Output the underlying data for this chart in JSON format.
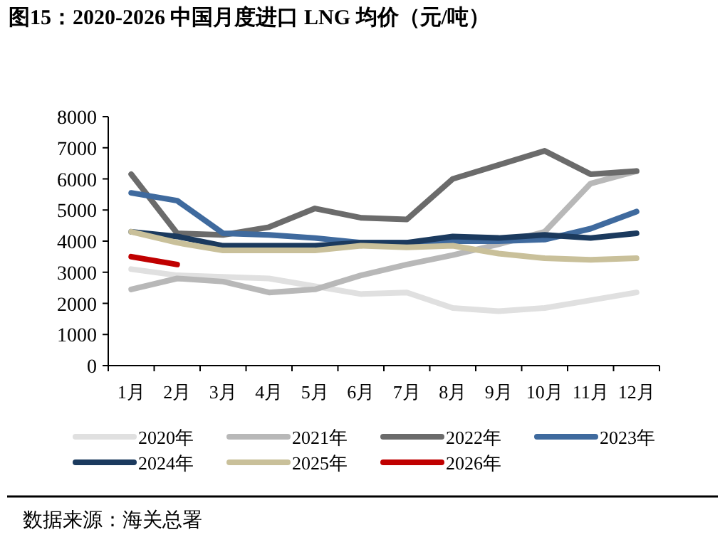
{
  "chart_data": {
    "type": "line",
    "title": "图15：2020-2026 中国月度进口 LNG 均价（元/吨）",
    "categories": [
      "1月",
      "2月",
      "3月",
      "4月",
      "5月",
      "6月",
      "7月",
      "8月",
      "9月",
      "10月",
      "11月",
      "12月"
    ],
    "ylim": [
      0,
      8000
    ],
    "yticks": [
      0,
      1000,
      2000,
      3000,
      4000,
      5000,
      6000,
      7000,
      8000
    ],
    "grid": false,
    "legend": "bottom",
    "marker": "none",
    "series": [
      {
        "name": "2020年",
        "color": "#e0e0e0",
        "values": [
          3100,
          2900,
          2850,
          2800,
          2550,
          2300,
          2350,
          1850,
          1750,
          1850,
          2100,
          2350
        ]
      },
      {
        "name": "2021年",
        "color": "#b8b8b8",
        "values": [
          2450,
          2800,
          2700,
          2350,
          2450,
          2900,
          3250,
          3550,
          3900,
          4300,
          5850,
          6250
        ]
      },
      {
        "name": "2022年",
        "color": "#6b6b6b",
        "values": [
          6150,
          4250,
          4200,
          4450,
          5050,
          4750,
          4700,
          6000,
          6450,
          6900,
          6150,
          6250
        ]
      },
      {
        "name": "2023年",
        "color": "#3f6a9e",
        "values": [
          5550,
          5300,
          4250,
          4200,
          4100,
          3950,
          3950,
          4000,
          4000,
          4050,
          4400,
          4950
        ]
      },
      {
        "name": "2024年",
        "color": "#1b3a5e",
        "values": [
          4300,
          4150,
          3850,
          3850,
          3850,
          3950,
          3950,
          4150,
          4100,
          4200,
          4100,
          4250
        ]
      },
      {
        "name": "2025年",
        "color": "#c9c09a",
        "values": [
          4300,
          3950,
          3700,
          3700,
          3700,
          3850,
          3800,
          3850,
          3600,
          3450,
          3400,
          3450
        ]
      },
      {
        "name": "2026年",
        "color": "#c00000",
        "values": [
          3500,
          3250,
          null,
          null,
          null,
          null,
          null,
          null,
          null,
          null,
          null,
          null
        ]
      }
    ],
    "annotations": [
      "数据来源：海关总署"
    ]
  }
}
